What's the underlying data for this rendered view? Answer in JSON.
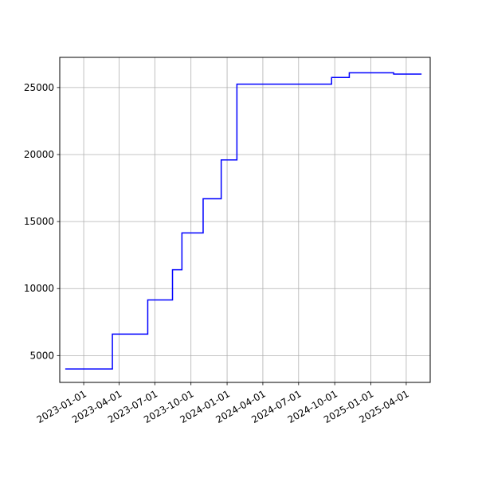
{
  "chart_data": {
    "type": "line",
    "title": "",
    "xlabel": "",
    "ylabel": "",
    "x_axis_type": "date",
    "xlim": [
      "2022-11-01",
      "2025-06-01"
    ],
    "ylim": [
      3000,
      27250
    ],
    "x_ticks": [
      "2023-01-01",
      "2023-04-01",
      "2023-07-01",
      "2023-10-01",
      "2024-01-01",
      "2024-04-01",
      "2024-07-01",
      "2024-10-01",
      "2025-01-01",
      "2025-04-01"
    ],
    "y_ticks": [
      5000,
      10000,
      15000,
      20000,
      25000
    ],
    "grid": true,
    "line_style": "steps-post",
    "series": [
      {
        "color": "#0000ff",
        "points": [
          {
            "x": "2022-11-15",
            "y": 4000
          },
          {
            "x": "2023-03-15",
            "y": 6600
          },
          {
            "x": "2023-06-13",
            "y": 9150
          },
          {
            "x": "2023-08-15",
            "y": 11400
          },
          {
            "x": "2023-09-08",
            "y": 14150
          },
          {
            "x": "2023-11-01",
            "y": 16700
          },
          {
            "x": "2023-12-17",
            "y": 19600
          },
          {
            "x": "2024-01-26",
            "y": 25250
          },
          {
            "x": "2024-09-23",
            "y": 25750
          },
          {
            "x": "2024-11-07",
            "y": 26100
          },
          {
            "x": "2025-02-28",
            "y": 26000
          },
          {
            "x": "2025-05-10",
            "y": 26000
          }
        ]
      }
    ]
  },
  "colors": {
    "line": "#0000ff",
    "grid": "#b0b0b0",
    "axes": "#000000",
    "background": "#ffffff"
  }
}
